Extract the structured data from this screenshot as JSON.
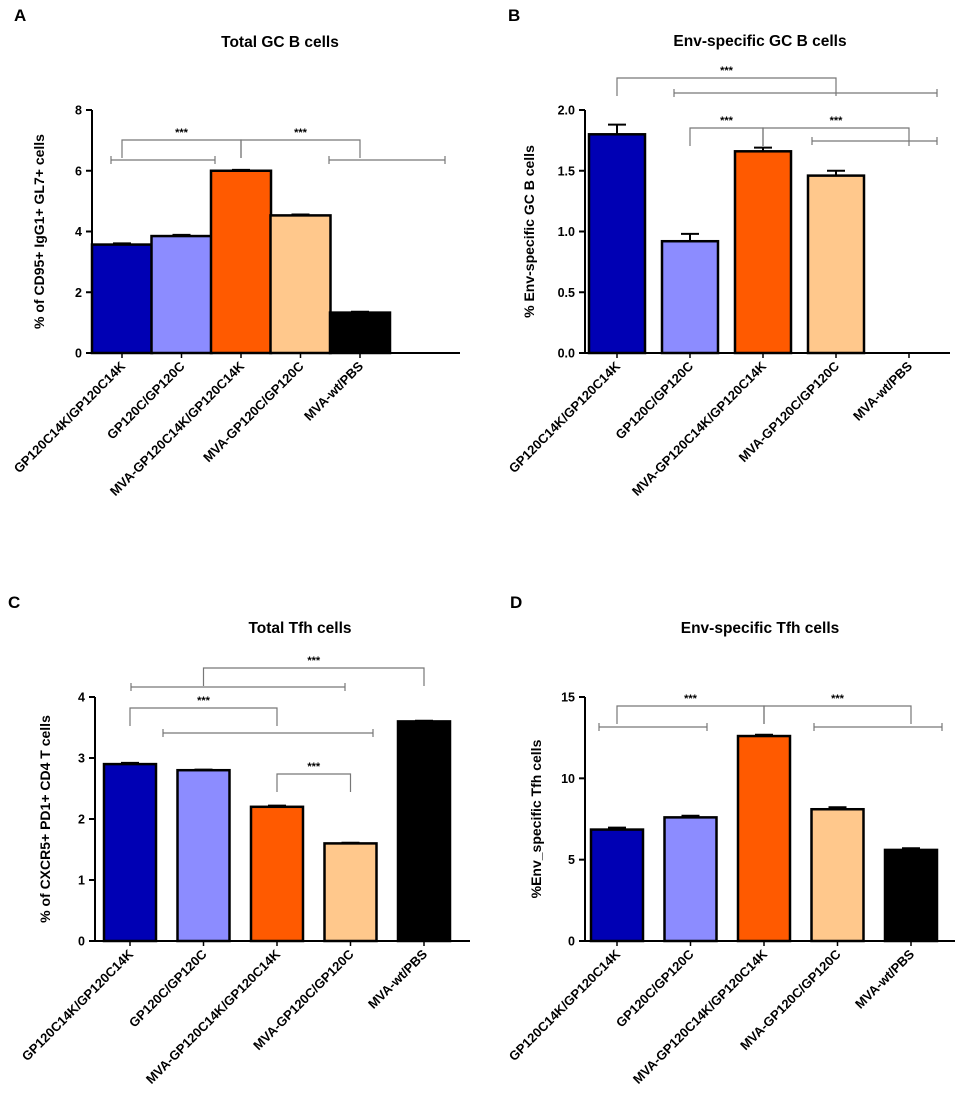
{
  "chart_data": [
    {
      "panel": "A",
      "type": "bar",
      "title": "Total GC B cells",
      "ylabel": "% of CD95+ IgG1+ GL7+ cells",
      "xlabel": "",
      "ylim": [
        0,
        8
      ],
      "yticks": [
        0,
        2,
        4,
        6,
        8
      ],
      "ytick_labels": [
        "0",
        "2",
        "4",
        "6",
        "8"
      ],
      "categories": [
        "GP120C14K/GP120C14K",
        "GP120C/GP120C",
        "MVA-GP120C14K/GP120C14K",
        "MVA-GP120C/GP120C",
        "MVA-wt/PBS"
      ],
      "values": [
        3.57,
        3.85,
        6.0,
        4.53,
        1.33
      ],
      "errors": [
        0.04,
        0.04,
        0.03,
        0.03,
        0.03
      ],
      "colors": [
        "#0000b4",
        "#8c8cff",
        "#ff5a00",
        "#ffc88c",
        "#000000"
      ],
      "significance": [
        {
          "from": 0,
          "to": 2,
          "label": "***"
        },
        {
          "from": 2,
          "to": 4,
          "label": "***"
        }
      ]
    },
    {
      "panel": "B",
      "type": "bar",
      "title": "Env-specific GC B cells",
      "ylabel": "% Env-specific GC B cells",
      "xlabel": "",
      "ylim": [
        0,
        2.0
      ],
      "yticks": [
        0,
        0.5,
        1.0,
        1.5,
        2.0
      ],
      "ytick_labels": [
        "0.0",
        "0.5",
        "1.0",
        "1.5",
        "2.0"
      ],
      "categories": [
        "GP120C14K/GP120C14K",
        "GP120C/GP120C",
        "MVA-GP120C14K/GP120C14K",
        "MVA-GP120C/GP120C",
        "MVA-wt/PBS"
      ],
      "values": [
        1.8,
        0.92,
        1.66,
        1.46,
        0
      ],
      "errors": [
        0.08,
        0.06,
        0.03,
        0.04,
        0
      ],
      "colors": [
        "#0000b4",
        "#8c8cff",
        "#ff5a00",
        "#ffc88c",
        "#000000"
      ],
      "significance": [
        {
          "from": 0,
          "to": 3,
          "label": "***"
        },
        {
          "from": 1,
          "to": 2,
          "label": "***"
        },
        {
          "from": 2,
          "to": 4,
          "label": "***"
        }
      ]
    },
    {
      "panel": "C",
      "type": "bar",
      "title": "Total Tfh cells",
      "ylabel": "% of CXCR5+ PD1+ CD4 T cells",
      "xlabel": "",
      "ylim": [
        0,
        4
      ],
      "yticks": [
        0,
        1,
        2,
        3,
        4
      ],
      "ytick_labels": [
        "0",
        "1",
        "2",
        "3",
        "4"
      ],
      "categories": [
        "GP120C14K/GP120C14K",
        "GP120C/GP120C",
        "MVA-GP120C14K/GP120C14K",
        "MVA-GP120C/GP120C",
        "MVA-wt/PBS"
      ],
      "values": [
        2.9,
        2.8,
        2.2,
        1.6,
        3.6
      ],
      "errors": [
        0.02,
        0.01,
        0.02,
        0.01,
        0.01
      ],
      "colors": [
        "#0000b4",
        "#8c8cff",
        "#ff5a00",
        "#ffc88c",
        "#000000"
      ],
      "significance": [
        {
          "from": 1,
          "to": 4,
          "label": "***"
        },
        {
          "from": 0,
          "to": 2,
          "label": "***"
        },
        {
          "from": 2,
          "to": 3,
          "label": "***"
        }
      ]
    },
    {
      "panel": "D",
      "type": "bar",
      "title": "Env-specific Tfh cells",
      "ylabel": "%Env_specific Tfh cells",
      "xlabel": "",
      "ylim": [
        0,
        15
      ],
      "yticks": [
        0,
        5,
        10,
        15
      ],
      "ytick_labels": [
        "0",
        "5",
        "10",
        "15"
      ],
      "categories": [
        "GP120C14K/GP120C14K",
        "GP120C/GP120C",
        "MVA-GP120C14K/GP120C14K",
        "MVA-GP120C/GP120C",
        "MVA-wt/PBS"
      ],
      "values": [
        6.85,
        7.6,
        12.6,
        8.1,
        5.6
      ],
      "errors": [
        0.12,
        0.1,
        0.08,
        0.12,
        0.1
      ],
      "colors": [
        "#0000b4",
        "#8c8cff",
        "#ff5a00",
        "#ffc88c",
        "#000000"
      ],
      "significance": [
        {
          "from": 0,
          "to": 2,
          "label": "***"
        },
        {
          "from": 2,
          "to": 4,
          "label": "***"
        }
      ]
    }
  ]
}
